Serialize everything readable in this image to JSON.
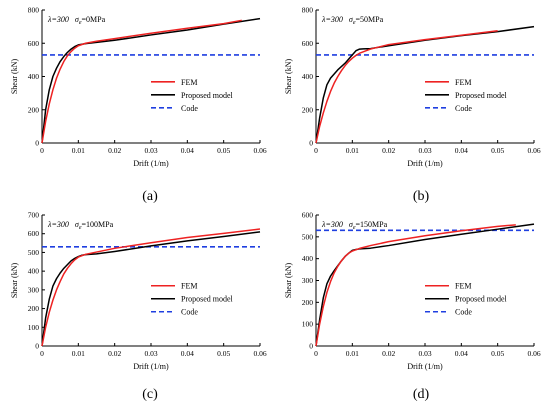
{
  "chart_data": [
    {
      "type": "line",
      "panel_label": "(a)",
      "annotation": {
        "lambda": "λ=300",
        "sigma_symbol": "σ",
        "sigma_sub": "e",
        "sigma_value": "=0MPa"
      },
      "xlabel": "Drift (1/m)",
      "ylabel": "Shear (kN)",
      "xlim": [
        0,
        0.06
      ],
      "ylim": [
        0,
        800
      ],
      "xticks": [
        0,
        0.01,
        0.02,
        0.03,
        0.04,
        0.05,
        0.06
      ],
      "xtick_labels": [
        "0",
        "0.01",
        "0.02",
        "0.03",
        "0.04",
        "0.05",
        "0.06"
      ],
      "yticks": [
        0,
        200,
        400,
        600,
        800
      ],
      "ytick_labels": [
        "0",
        "200",
        "400",
        "600",
        "800"
      ],
      "legend_position": "center-right",
      "series": [
        {
          "name": "FEM",
          "color": "#ee2222",
          "style": "solid",
          "x": [
            0,
            0.001,
            0.002,
            0.003,
            0.004,
            0.005,
            0.006,
            0.007,
            0.008,
            0.009,
            0.01,
            0.012,
            0.015,
            0.02,
            0.03,
            0.04,
            0.05,
            0.055
          ],
          "y": [
            0,
            130,
            235,
            320,
            390,
            445,
            490,
            525,
            550,
            570,
            585,
            600,
            612,
            628,
            660,
            690,
            718,
            738
          ]
        },
        {
          "name": "Proposed model",
          "color": "#000000",
          "style": "solid",
          "x": [
            0,
            0.001,
            0.002,
            0.003,
            0.004,
            0.005,
            0.006,
            0.007,
            0.008,
            0.009,
            0.01,
            0.012,
            0.015,
            0.02,
            0.03,
            0.04,
            0.05,
            0.06
          ],
          "y": [
            0,
            200,
            320,
            400,
            450,
            490,
            520,
            545,
            565,
            580,
            590,
            598,
            605,
            618,
            650,
            680,
            715,
            748
          ]
        },
        {
          "name": "Code",
          "color": "#1f3fe0",
          "style": "dashed",
          "x": [
            0,
            0.06
          ],
          "y": [
            530,
            530
          ]
        }
      ]
    },
    {
      "type": "line",
      "panel_label": "(b)",
      "annotation": {
        "lambda": "λ=300",
        "sigma_symbol": "σ",
        "sigma_sub": "e",
        "sigma_value": "=50MPa"
      },
      "xlabel": "Drift (1/m)",
      "ylabel": "Shear (kN)",
      "xlim": [
        0,
        0.06
      ],
      "ylim": [
        0,
        800
      ],
      "xticks": [
        0,
        0.01,
        0.02,
        0.03,
        0.04,
        0.05,
        0.06
      ],
      "xtick_labels": [
        "0",
        "0.01",
        "0.02",
        "0.03",
        "0.04",
        "0.05",
        "0.06"
      ],
      "yticks": [
        0,
        200,
        400,
        600,
        800
      ],
      "ytick_labels": [
        "0",
        "200",
        "400",
        "600",
        "800"
      ],
      "legend_position": "center-right",
      "series": [
        {
          "name": "FEM",
          "color": "#ee2222",
          "style": "solid",
          "x": [
            0,
            0.001,
            0.002,
            0.003,
            0.004,
            0.005,
            0.006,
            0.007,
            0.008,
            0.009,
            0.01,
            0.011,
            0.012,
            0.015,
            0.02,
            0.03,
            0.04,
            0.05
          ],
          "y": [
            0,
            100,
            180,
            250,
            310,
            360,
            400,
            435,
            465,
            490,
            510,
            527,
            540,
            565,
            592,
            622,
            648,
            675
          ]
        },
        {
          "name": "Proposed model",
          "color": "#000000",
          "style": "solid",
          "x": [
            0,
            0.001,
            0.002,
            0.003,
            0.004,
            0.006,
            0.008,
            0.01,
            0.011,
            0.012,
            0.013,
            0.015,
            0.02,
            0.03,
            0.04,
            0.05,
            0.06
          ],
          "y": [
            0,
            150,
            270,
            350,
            390,
            440,
            480,
            530,
            555,
            565,
            566,
            568,
            585,
            618,
            646,
            670,
            700
          ]
        },
        {
          "name": "Code",
          "color": "#1f3fe0",
          "style": "dashed",
          "x": [
            0,
            0.06
          ],
          "y": [
            530,
            530
          ]
        }
      ]
    },
    {
      "type": "line",
      "panel_label": "(c)",
      "annotation": {
        "lambda": "λ=300",
        "sigma_symbol": "σ",
        "sigma_sub": "e",
        "sigma_value": "=100MPa"
      },
      "xlabel": "Drift (1/m)",
      "ylabel": "Shear (kN)",
      "xlim": [
        0,
        0.06
      ],
      "ylim": [
        0,
        700
      ],
      "xticks": [
        0,
        0.01,
        0.02,
        0.03,
        0.04,
        0.05,
        0.06
      ],
      "xtick_labels": [
        "0",
        "0.01",
        "0.02",
        "0.03",
        "0.04",
        "0.05",
        "0.06"
      ],
      "yticks": [
        0,
        100,
        200,
        300,
        400,
        500,
        600,
        700
      ],
      "ytick_labels": [
        "0",
        "100",
        "200",
        "300",
        "400",
        "500",
        "600",
        "700"
      ],
      "legend_position": "center-right",
      "series": [
        {
          "name": "FEM",
          "color": "#ee2222",
          "style": "solid",
          "x": [
            0,
            0.001,
            0.002,
            0.003,
            0.004,
            0.005,
            0.006,
            0.007,
            0.008,
            0.009,
            0.01,
            0.012,
            0.015,
            0.02,
            0.03,
            0.04,
            0.05,
            0.06
          ],
          "y": [
            0,
            100,
            180,
            245,
            300,
            345,
            385,
            415,
            440,
            460,
            475,
            490,
            502,
            522,
            552,
            580,
            602,
            625
          ]
        },
        {
          "name": "Proposed model",
          "color": "#000000",
          "style": "solid",
          "x": [
            0,
            0.001,
            0.002,
            0.003,
            0.004,
            0.005,
            0.006,
            0.007,
            0.008,
            0.009,
            0.01,
            0.011,
            0.012,
            0.015,
            0.02,
            0.03,
            0.04,
            0.05,
            0.06
          ],
          "y": [
            0,
            150,
            250,
            320,
            360,
            390,
            415,
            435,
            455,
            468,
            478,
            485,
            488,
            492,
            505,
            535,
            562,
            585,
            610
          ]
        },
        {
          "name": "Code",
          "color": "#1f3fe0",
          "style": "dashed",
          "x": [
            0,
            0.06
          ],
          "y": [
            530,
            530
          ]
        }
      ]
    },
    {
      "type": "line",
      "panel_label": "(d)",
      "annotation": {
        "lambda": "λ=300",
        "sigma_symbol": "σ",
        "sigma_sub": "e",
        "sigma_value": "=150MPa"
      },
      "xlabel": "Drift (1/m)",
      "ylabel": "Shear (kN)",
      "xlim": [
        0,
        0.06
      ],
      "ylim": [
        0,
        600
      ],
      "xticks": [
        0,
        0.01,
        0.02,
        0.03,
        0.04,
        0.05,
        0.06
      ],
      "xtick_labels": [
        "0",
        "0.01",
        "0.02",
        "0.03",
        "0.04",
        "0.05",
        "0.06"
      ],
      "yticks": [
        0,
        100,
        200,
        300,
        400,
        500,
        600
      ],
      "ytick_labels": [
        "0",
        "100",
        "200",
        "300",
        "400",
        "500",
        "600"
      ],
      "legend_position": "center-right",
      "series": [
        {
          "name": "FEM",
          "color": "#ee2222",
          "style": "solid",
          "x": [
            0,
            0.001,
            0.002,
            0.003,
            0.004,
            0.005,
            0.006,
            0.007,
            0.008,
            0.009,
            0.01,
            0.012,
            0.015,
            0.02,
            0.03,
            0.04,
            0.05,
            0.055
          ],
          "y": [
            0,
            100,
            180,
            245,
            295,
            335,
            365,
            390,
            410,
            425,
            435,
            447,
            460,
            478,
            505,
            528,
            548,
            555
          ]
        },
        {
          "name": "Proposed model",
          "color": "#000000",
          "style": "solid",
          "x": [
            0,
            0.001,
            0.002,
            0.003,
            0.004,
            0.005,
            0.006,
            0.007,
            0.008,
            0.009,
            0.01,
            0.011,
            0.012,
            0.015,
            0.02,
            0.03,
            0.04,
            0.05,
            0.06
          ],
          "y": [
            0,
            120,
            220,
            285,
            320,
            345,
            368,
            390,
            410,
            425,
            438,
            442,
            445,
            448,
            460,
            488,
            512,
            535,
            558
          ]
        },
        {
          "name": "Code",
          "color": "#1f3fe0",
          "style": "dashed",
          "x": [
            0,
            0.06
          ],
          "y": [
            530,
            530
          ]
        }
      ]
    }
  ]
}
